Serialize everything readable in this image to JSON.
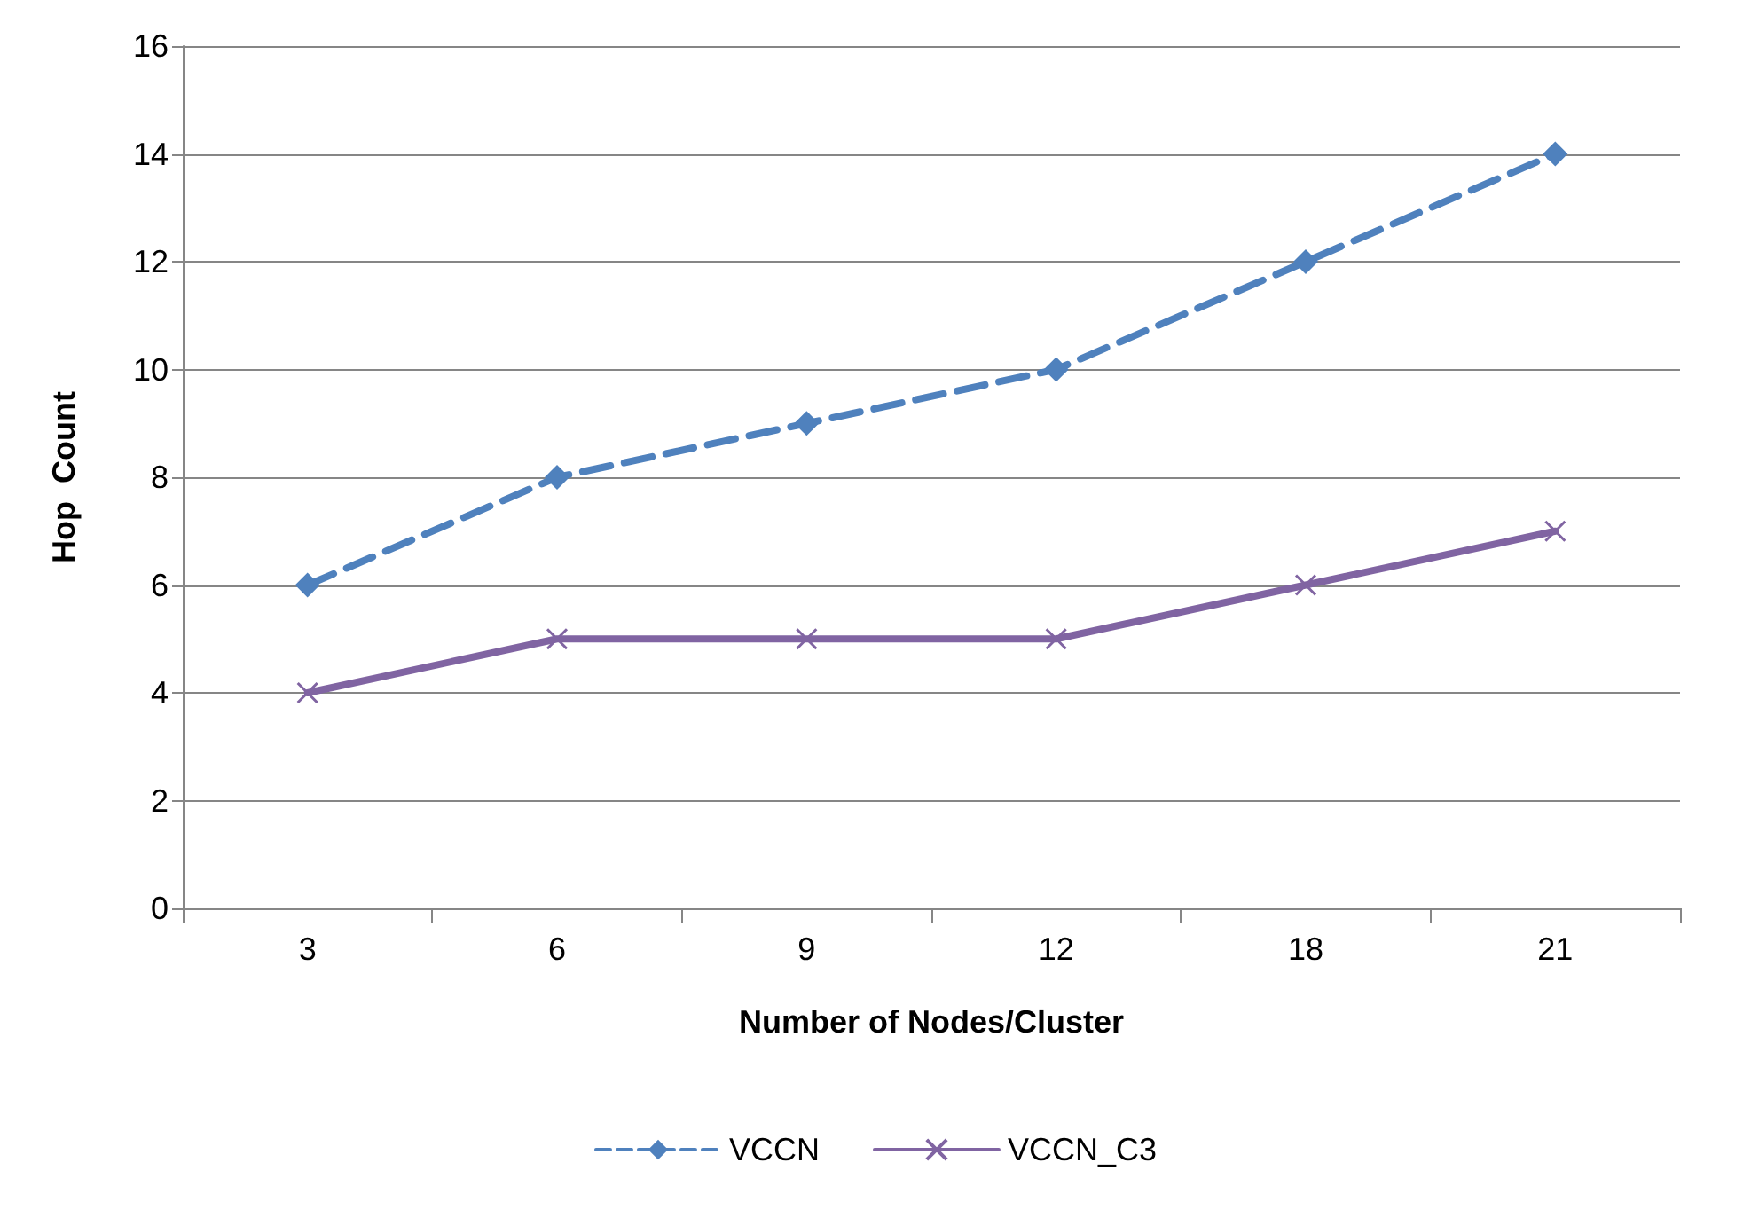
{
  "chart_data": {
    "type": "line",
    "xlabel": "Number of Nodes/Cluster",
    "ylabel": "Hop  Count",
    "categories": [
      "3",
      "6",
      "9",
      "12",
      "18",
      "21"
    ],
    "series": [
      {
        "name": "VCCN",
        "color": "#4f81bd",
        "values": [
          6,
          8,
          9,
          10,
          12,
          14
        ],
        "marker": "diamond",
        "line_style": "dashed"
      },
      {
        "name": "VCCN_C3",
        "color": "#8064a2",
        "values": [
          4,
          5,
          5,
          5,
          6,
          7
        ],
        "marker": "cross",
        "line_style": "solid"
      }
    ],
    "ylim": [
      0,
      16
    ],
    "yticks": [
      0,
      2,
      4,
      6,
      8,
      10,
      12,
      14,
      16
    ],
    "grid": "y",
    "legend": "bottom"
  }
}
